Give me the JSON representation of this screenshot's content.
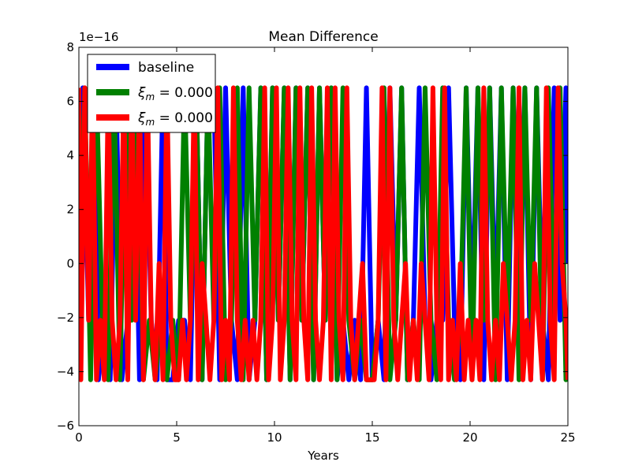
{
  "chart_data": {
    "type": "line",
    "title": "Mean Difference",
    "xlabel": "Years",
    "ylabel": "",
    "offset_text": "1e−16",
    "xlim": [
      0,
      25
    ],
    "ylim": [
      -6,
      8
    ],
    "x_ticks": [
      0,
      5,
      10,
      15,
      20,
      25
    ],
    "x_tick_labels": [
      "0",
      "5",
      "10",
      "15",
      "20",
      "25"
    ],
    "y_ticks": [
      -6,
      -4,
      -2,
      0,
      2,
      4,
      6,
      8
    ],
    "y_tick_labels": [
      "−6",
      "−4",
      "−2",
      "0",
      "2",
      "4",
      "6",
      "8"
    ],
    "grid": false,
    "legend_placement": "top-left",
    "levels": [
      -4.3,
      -2.1,
      0.0,
      6.5
    ],
    "series": [
      {
        "name": "baseline",
        "color": "#0000ff",
        "x": [
          0.0,
          0.2,
          0.5,
          0.8,
          1.0,
          1.3,
          1.6,
          1.9,
          2.2,
          2.5,
          2.8,
          3.1,
          3.4,
          3.7,
          4.0,
          4.3,
          4.5,
          4.8,
          5.1,
          5.4,
          5.7,
          6.0,
          6.3,
          6.6,
          6.9,
          7.2,
          7.5,
          7.8,
          8.1,
          8.4,
          8.7,
          9.0,
          9.3,
          9.6,
          9.9,
          10.2,
          10.5,
          10.8,
          11.1,
          11.4,
          11.7,
          12.0,
          12.3,
          12.6,
          12.9,
          13.2,
          13.5,
          13.8,
          14.1,
          14.4,
          14.7,
          15.0,
          15.3,
          15.6,
          15.9,
          16.2,
          16.5,
          16.8,
          17.1,
          17.4,
          17.7,
          18.0,
          18.3,
          18.6,
          18.9,
          19.2,
          19.5,
          19.8,
          20.1,
          20.4,
          20.7,
          21.0,
          21.3,
          21.6,
          21.9,
          22.2,
          22.5,
          22.8,
          23.1,
          23.4,
          23.7,
          24.0,
          24.3,
          24.6,
          24.9,
          25.0
        ],
        "y": [
          -4.3,
          6.5,
          -2.1,
          6.5,
          -4.3,
          -2.1,
          -4.3,
          6.5,
          -4.3,
          -2.1,
          6.5,
          -4.3,
          6.5,
          -2.1,
          -4.3,
          6.5,
          -4.3,
          -4.3,
          -2.1,
          -2.1,
          -4.3,
          6.5,
          -4.3,
          6.5,
          6.5,
          -4.3,
          6.5,
          -2.1,
          -4.3,
          6.5,
          -4.3,
          -2.1,
          6.5,
          -4.3,
          6.5,
          -2.1,
          6.5,
          -4.3,
          6.5,
          -2.1,
          6.5,
          -4.3,
          6.5,
          -2.1,
          6.5,
          -4.3,
          -2.1,
          -4.3,
          -2.1,
          -4.3,
          6.5,
          -4.3,
          -2.1,
          -4.3,
          6.5,
          -2.1,
          6.5,
          -4.3,
          -2.1,
          6.5,
          -2.1,
          -4.3,
          -2.1,
          -2.1,
          6.5,
          -2.1,
          -4.3,
          6.5,
          -2.1,
          6.5,
          -4.3,
          6.5,
          -2.1,
          6.5,
          -4.3,
          6.5,
          -2.1,
          6.5,
          -4.3,
          6.5,
          -2.1,
          -4.3,
          6.5,
          -2.1,
          6.5,
          0.0
        ]
      },
      {
        "name": "$\\xi_m = 0.000$",
        "color": "#008000",
        "x": [
          0.0,
          0.3,
          0.6,
          0.9,
          1.2,
          1.5,
          1.8,
          2.1,
          2.4,
          2.7,
          3.0,
          3.3,
          3.6,
          3.9,
          4.2,
          4.5,
          4.8,
          5.1,
          5.4,
          5.7,
          6.0,
          6.3,
          6.6,
          6.9,
          7.2,
          7.5,
          7.8,
          8.1,
          8.4,
          8.7,
          9.0,
          9.3,
          9.6,
          9.9,
          10.2,
          10.5,
          10.8,
          11.1,
          11.4,
          11.7,
          12.0,
          12.3,
          12.6,
          12.9,
          13.2,
          13.5,
          13.8,
          14.1,
          14.4,
          14.7,
          15.0,
          15.3,
          15.6,
          15.9,
          16.2,
          16.5,
          16.8,
          17.1,
          17.4,
          17.7,
          18.0,
          18.3,
          18.6,
          18.9,
          19.2,
          19.5,
          19.8,
          20.1,
          20.4,
          20.7,
          21.0,
          21.3,
          21.6,
          21.9,
          22.2,
          22.5,
          22.8,
          23.1,
          23.4,
          23.7,
          24.0,
          24.3,
          24.6,
          24.9,
          25.0
        ],
        "y": [
          -2.1,
          6.5,
          -4.3,
          6.5,
          -2.1,
          -4.3,
          6.5,
          -4.3,
          6.5,
          -2.1,
          6.5,
          -4.3,
          -2.1,
          -4.3,
          -2.1,
          -4.3,
          -2.1,
          -4.3,
          6.5,
          -2.1,
          6.5,
          -4.3,
          6.5,
          -2.1,
          6.5,
          -4.3,
          -2.1,
          6.5,
          -4.3,
          6.5,
          -2.1,
          6.5,
          -4.3,
          6.5,
          -2.1,
          6.5,
          -4.3,
          6.5,
          -2.1,
          6.5,
          -4.3,
          6.5,
          -2.1,
          6.5,
          -4.3,
          6.5,
          -2.1,
          -4.3,
          -2.1,
          -4.3,
          -4.3,
          -2.1,
          6.5,
          -4.3,
          -2.1,
          6.5,
          -4.3,
          -2.1,
          -4.3,
          6.5,
          -2.1,
          -4.3,
          6.5,
          -2.1,
          -4.3,
          -2.1,
          6.5,
          -4.3,
          6.5,
          -2.1,
          6.5,
          -4.3,
          6.5,
          -2.1,
          6.5,
          -4.3,
          6.5,
          -2.1,
          6.5,
          -4.3,
          6.5,
          -2.1,
          6.5,
          -4.3,
          -2.1
        ]
      },
      {
        "name": "$\\xi_m = 0.000$",
        "color": "#ff0000",
        "x": [
          0.0,
          0.1,
          0.3,
          0.5,
          0.7,
          0.9,
          1.1,
          1.3,
          1.5,
          1.7,
          1.9,
          2.1,
          2.3,
          2.5,
          2.7,
          2.9,
          3.1,
          3.3,
          3.5,
          3.7,
          3.9,
          4.1,
          4.3,
          4.5,
          4.7,
          4.9,
          5.1,
          5.3,
          5.5,
          5.7,
          5.9,
          6.1,
          6.3,
          6.5,
          6.7,
          6.9,
          7.1,
          7.3,
          7.5,
          7.7,
          7.9,
          8.1,
          8.3,
          8.5,
          8.7,
          8.9,
          9.1,
          9.3,
          9.5,
          9.7,
          9.9,
          10.1,
          10.3,
          10.5,
          10.7,
          10.9,
          11.1,
          11.3,
          11.5,
          11.7,
          11.9,
          12.1,
          12.3,
          12.5,
          12.7,
          12.9,
          13.1,
          13.3,
          13.5,
          13.7,
          13.9,
          14.1,
          14.3,
          14.5,
          14.7,
          14.9,
          15.1,
          15.3,
          15.5,
          15.7,
          15.9,
          16.1,
          16.3,
          16.5,
          16.7,
          16.9,
          17.1,
          17.3,
          17.5,
          17.7,
          17.9,
          18.1,
          18.3,
          18.5,
          18.7,
          18.9,
          19.1,
          19.3,
          19.5,
          19.7,
          19.9,
          20.1,
          20.3,
          20.5,
          20.7,
          20.9,
          21.1,
          21.3,
          21.5,
          21.7,
          21.9,
          22.1,
          22.3,
          22.5,
          22.7,
          22.9,
          23.1,
          23.3,
          23.5,
          23.7,
          23.9,
          24.1,
          24.3,
          24.5,
          24.7,
          24.9,
          25.0
        ],
        "y": [
          6.5,
          -4.3,
          6.5,
          -2.1,
          6.5,
          -4.3,
          -2.1,
          -4.3,
          6.5,
          -2.1,
          -4.3,
          -2.1,
          6.5,
          -4.3,
          6.5,
          -2.1,
          6.5,
          -4.3,
          6.5,
          -2.1,
          -4.3,
          0.0,
          -4.3,
          6.5,
          -2.1,
          -4.3,
          -4.3,
          -2.1,
          -4.3,
          -2.1,
          6.5,
          -4.3,
          0.0,
          -2.1,
          -4.3,
          -2.1,
          6.5,
          -4.3,
          -2.1,
          -4.3,
          6.5,
          -2.1,
          -4.3,
          -2.1,
          -4.3,
          -2.1,
          -4.3,
          -2.1,
          6.5,
          -4.3,
          -2.1,
          6.5,
          -4.3,
          -2.1,
          6.5,
          -2.1,
          -4.3,
          6.5,
          -2.1,
          -4.3,
          6.5,
          -2.1,
          -4.3,
          -2.1,
          6.5,
          -4.3,
          6.5,
          -2.1,
          -4.3,
          6.5,
          -2.1,
          -4.3,
          -2.1,
          0.0,
          -4.3,
          -4.3,
          -4.3,
          -2.1,
          6.5,
          -4.3,
          6.5,
          -2.1,
          -4.3,
          -2.1,
          0.0,
          -4.3,
          -2.1,
          -4.3,
          0.0,
          -2.1,
          -4.3,
          6.5,
          -2.1,
          -4.3,
          6.5,
          -4.3,
          -2.1,
          -4.3,
          0.0,
          -4.3,
          -2.1,
          -4.3,
          -2.1,
          -4.3,
          6.5,
          -2.1,
          -4.3,
          -2.1,
          -4.3,
          0.0,
          -2.1,
          -4.3,
          -2.1,
          6.5,
          -4.3,
          -2.1,
          -4.3,
          0.0,
          -2.1,
          -4.3,
          6.5,
          -2.1,
          -4.3,
          6.5,
          0.0,
          -2.1,
          -4.3
        ]
      }
    ],
    "legend": {
      "entries": [
        {
          "text": "baseline",
          "math": false
        },
        {
          "text": "ξ",
          "sub": "m",
          "rest": " = 0.000",
          "math": true
        },
        {
          "text": "ξ",
          "sub": "m",
          "rest": " = 0.000",
          "math": true
        }
      ]
    }
  }
}
